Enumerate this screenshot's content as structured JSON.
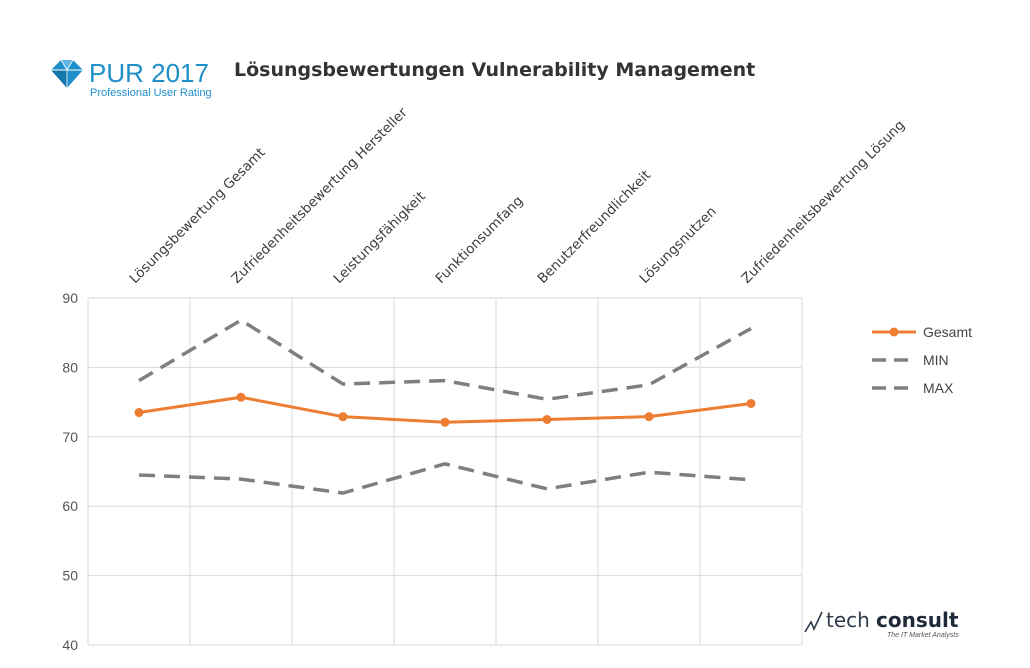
{
  "logo": {
    "name": "PUR 2017",
    "subtitle": "Professional User Rating"
  },
  "brand": {
    "tech": "tech",
    "consult": "consult",
    "tagline": "The IT Market Analysts"
  },
  "colors": {
    "gesamt": "#ED7D31",
    "min": "#7F7F7F",
    "max": "#7F7F7F",
    "logo": "#1F8FC9"
  },
  "chart_data": {
    "type": "line",
    "title": "Lösungsbewertungen Vulnerability Management",
    "categories": [
      "Lösungsbewertung Gesamt",
      "Zufriedenheitsbewertung Hersteller",
      "Leistungsfähigkeit",
      "Funktionsumfang",
      "Benutzerfreundlichkeit",
      "Lösungsnutzen",
      "Zufriedenheitsbewertung Lösung"
    ],
    "series": [
      {
        "name": "Gesamt",
        "values": [
          73.5,
          75.7,
          72.9,
          72.1,
          72.5,
          72.9,
          74.8
        ],
        "style": "solid",
        "markers": true
      },
      {
        "name": "MIN",
        "values": [
          64.5,
          63.9,
          61.9,
          66.1,
          62.5,
          64.9,
          63.8
        ],
        "style": "dashed",
        "markers": false
      },
      {
        "name": "MAX",
        "values": [
          78.1,
          86.8,
          77.6,
          78.1,
          75.4,
          77.5,
          85.6
        ],
        "style": "dashed",
        "markers": false
      }
    ],
    "yticks": [
      40,
      50,
      60,
      70,
      80,
      90
    ],
    "ylim": [
      40,
      90
    ],
    "grid": true,
    "legend": "right",
    "xlabel": "",
    "ylabel": ""
  }
}
